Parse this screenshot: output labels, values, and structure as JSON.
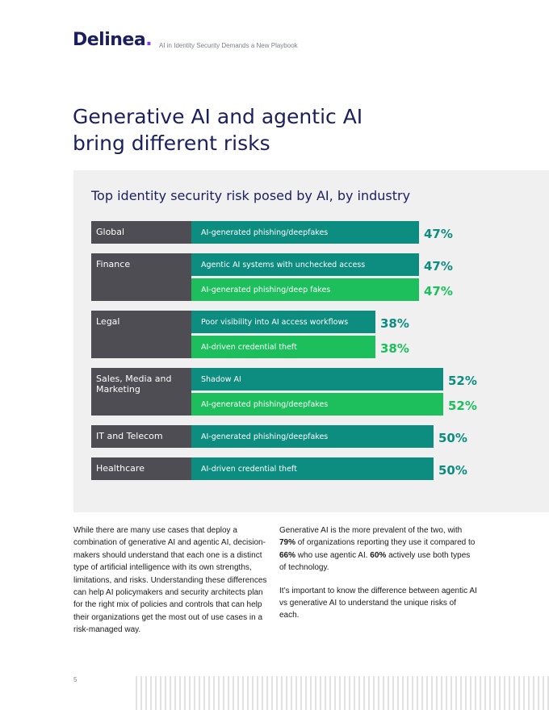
{
  "header": {
    "logo_text": "Delinea",
    "logo_dot": ".",
    "doc_subtitle": "AI in Identity Security Demands a New Playbook"
  },
  "headline": "Generative AI and agentic AI bring different risks",
  "colors": {
    "teal": "#0d8c80",
    "green": "#1dbf5c",
    "industry_box": "#4d4d53",
    "panel": "#f0f0f0"
  },
  "chart_data": {
    "type": "bar",
    "orientation": "horizontal",
    "title": "Top identity security risk posed by AI, by industry",
    "unit": "%",
    "groups": [
      {
        "industry": "Global",
        "bars": [
          {
            "label": "AI-generated phishing/deepfakes",
            "value": 47,
            "display": "47%",
            "color": "teal"
          }
        ]
      },
      {
        "industry": "Finance",
        "bars": [
          {
            "label": "Agentic AI systems with unchecked access",
            "value": 47,
            "display": "47%",
            "color": "teal"
          },
          {
            "label": "AI-generated phishing/deep fakes",
            "value": 47,
            "display": "47%",
            "color": "green"
          }
        ]
      },
      {
        "industry": "Legal",
        "bars": [
          {
            "label": "Poor visibility into AI access workflows",
            "value": 38,
            "display": "38%",
            "color": "teal"
          },
          {
            "label": "AI-driven credential theft",
            "value": 38,
            "display": "38%",
            "color": "green"
          }
        ]
      },
      {
        "industry": "Sales, Media and Marketing",
        "bars": [
          {
            "label": "Shadow AI",
            "value": 52,
            "display": "52%",
            "color": "teal"
          },
          {
            "label": "AI-generated phishing/deepfakes",
            "value": 52,
            "display": "52%",
            "color": "green"
          }
        ]
      },
      {
        "industry": "IT and Telecom",
        "bars": [
          {
            "label": "AI-generated phishing/deepfakes",
            "value": 50,
            "display": "50%",
            "color": "teal"
          }
        ]
      },
      {
        "industry": "Healthcare",
        "bars": [
          {
            "label": "AI-driven credential theft",
            "value": 50,
            "display": "50%",
            "color": "teal"
          }
        ]
      }
    ]
  },
  "body": {
    "left_text": "While there are many use cases that deploy a combination of generative AI and agentic AI, decision-makers should understand that each one is a distinct type of artificial intelligence with its own strengths, limitations, and risks. Understanding these differences can help AI policymakers and security architects plan for the right mix of policies and controls that can help their organizations get the most out of use cases in a risk-managed way.",
    "right_p1_a": "Generative AI is the more prevalent of the two, with ",
    "right_p1_b1": "79%",
    "right_p1_c": " of organizations reporting they use it compared to ",
    "right_p1_b2": "66%",
    "right_p1_d": " who use agentic AI. ",
    "right_p1_b3": "60%",
    "right_p1_e": " actively use both types of technology.",
    "right_p2": "It’s important to know the difference between agentic AI vs generative AI to understand the unique risks of each."
  },
  "footer": {
    "page_number": "5"
  }
}
